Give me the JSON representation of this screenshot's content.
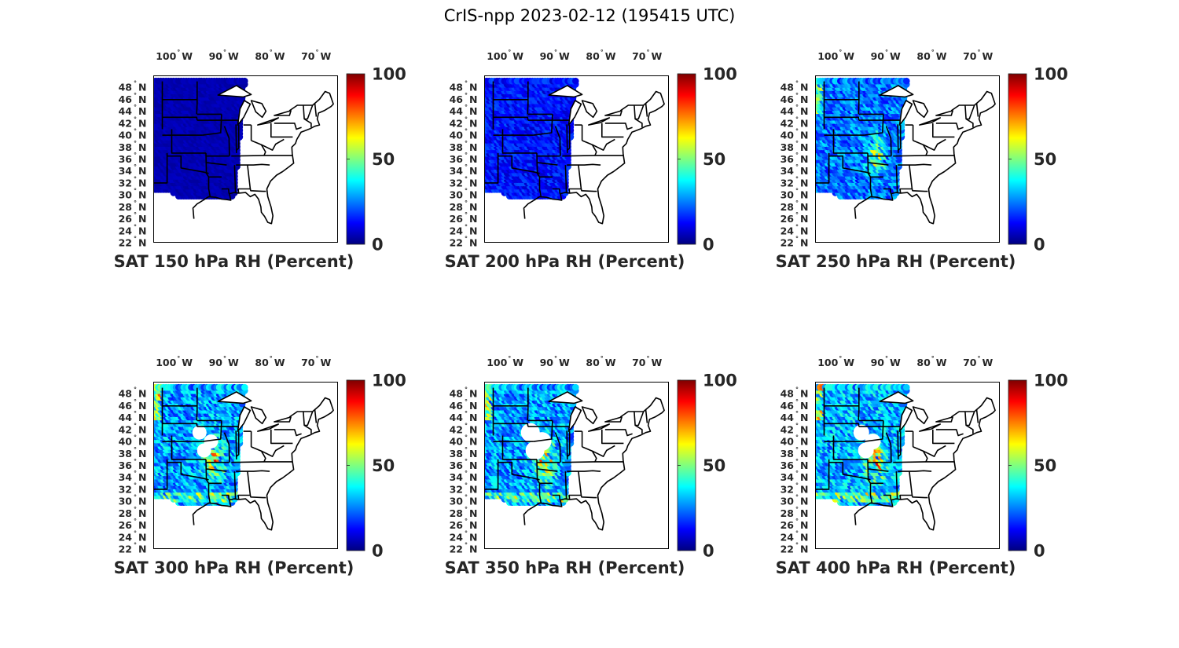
{
  "figure": {
    "title": "CrIS-npp 2023-02-12 (195415 UTC)"
  },
  "colormap": {
    "name": "jet",
    "stops": [
      "#00007f",
      "#0000ff",
      "#007fff",
      "#00ffff",
      "#7fff7f",
      "#ffff00",
      "#ff7f00",
      "#ff0000",
      "#7f0000"
    ]
  },
  "axes": {
    "lon_ticks": [
      "100",
      "90",
      "80",
      "70"
    ],
    "lon_hemisphere": "W",
    "lat_ticks": [
      "48",
      "46",
      "44",
      "42",
      "40",
      "38",
      "36",
      "34",
      "32",
      "30",
      "28",
      "26",
      "24",
      "22"
    ],
    "lat_hemisphere": "N",
    "degree_symbol": "°",
    "colorbar_ticks": [
      "100",
      "50",
      "0"
    ]
  },
  "panels": [
    {
      "title": "SAT 150 hPa RH (Percent)"
    },
    {
      "title": "SAT 200 hPa RH (Percent)"
    },
    {
      "title": "SAT 250 hPa RH (Percent)"
    },
    {
      "title": "SAT 300 hPa RH (Percent)"
    },
    {
      "title": "SAT 350 hPa RH (Percent)"
    },
    {
      "title": "SAT 400 hPa RH (Percent)"
    }
  ],
  "chart_data": {
    "type": "heatmap",
    "variable": "RH",
    "units": "Percent",
    "color_range": [
      0,
      100
    ],
    "lon_range": [
      -106,
      -66
    ],
    "lat_range": [
      22,
      50
    ],
    "levels_hPa": [
      150,
      200,
      250,
      300,
      350,
      400
    ],
    "panels": [
      {
        "level_hPa": 150,
        "swath_lon_range": [
          -106,
          -88
        ],
        "rh_typical": 5,
        "rh_range": [
          0,
          10
        ]
      },
      {
        "level_hPa": 200,
        "swath_lon_range": [
          -106,
          -88
        ],
        "rh_typical": 15,
        "rh_range": [
          0,
          40
        ]
      },
      {
        "level_hPa": 250,
        "swath_lon_range": [
          -106,
          -88
        ],
        "rh_typical": 25,
        "rh_range": [
          5,
          90
        ]
      },
      {
        "level_hPa": 300,
        "swath_lon_range": [
          -106,
          -88
        ],
        "rh_typical": 30,
        "rh_range": [
          5,
          95
        ]
      },
      {
        "level_hPa": 350,
        "swath_lon_range": [
          -106,
          -88
        ],
        "rh_typical": 30,
        "rh_range": [
          5,
          95
        ]
      },
      {
        "level_hPa": 400,
        "swath_lon_range": [
          -106,
          -88
        ],
        "rh_typical": 30,
        "rh_range": [
          5,
          95
        ]
      }
    ]
  }
}
